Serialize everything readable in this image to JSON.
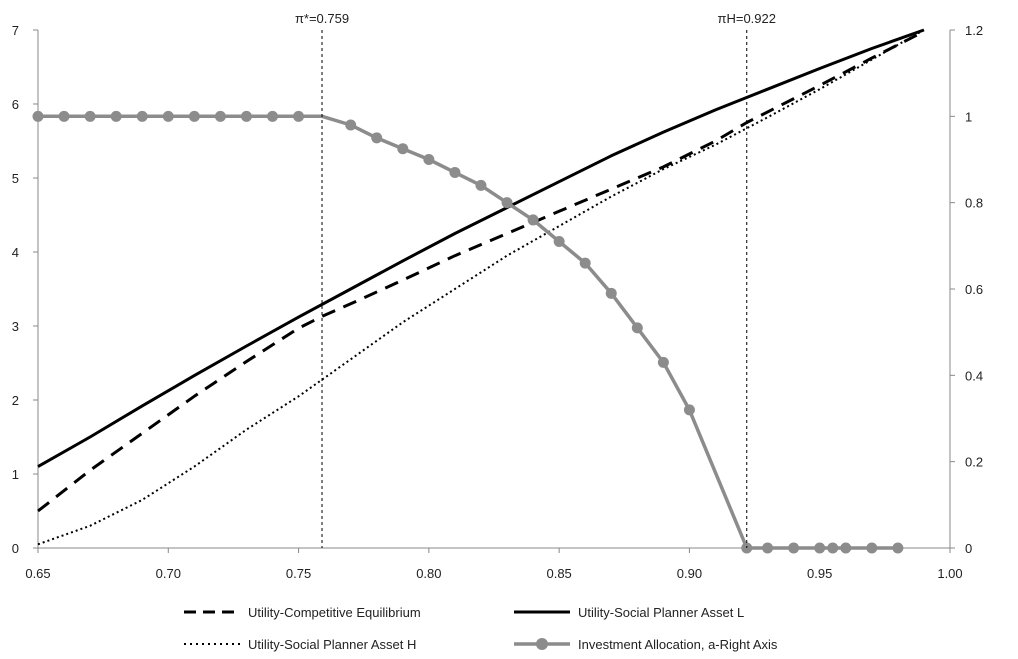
{
  "chart_data": {
    "type": "line",
    "title": "",
    "xlabel": "",
    "ylabel": "",
    "xlim": [
      0.65,
      1.0
    ],
    "ylim_left": [
      0,
      7
    ],
    "ylim_right": [
      0,
      1.2
    ],
    "grid": false,
    "legend_position": "bottom",
    "x_ticks": [
      "0.65",
      "0.70",
      "0.75",
      "0.80",
      "0.85",
      "0.90",
      "0.95",
      "1.00"
    ],
    "y_left_ticks": [
      "0",
      "1",
      "2",
      "3",
      "4",
      "5",
      "6",
      "7"
    ],
    "y_right_ticks": [
      "0",
      "0.2",
      "0.4",
      "0.6",
      "0.8",
      "1",
      "1.2"
    ],
    "annotations": [
      {
        "label": "π*=0.759",
        "x": 0.759
      },
      {
        "label": "πH=0.922",
        "x": 0.922
      }
    ],
    "series": [
      {
        "name": "Utility-Competitive  Equilibrium",
        "axis": "left",
        "style": "dashed",
        "color": "#000000",
        "x": [
          0.65,
          0.67,
          0.69,
          0.71,
          0.73,
          0.75,
          0.759,
          0.77,
          0.79,
          0.81,
          0.83,
          0.85,
          0.87,
          0.89,
          0.91,
          0.922,
          0.95,
          0.97,
          0.99
        ],
        "values": [
          0.5,
          1.05,
          1.55,
          2.05,
          2.52,
          2.97,
          3.13,
          3.3,
          3.62,
          3.95,
          4.25,
          4.55,
          4.85,
          5.15,
          5.5,
          5.75,
          6.25,
          6.62,
          6.98
        ]
      },
      {
        "name": "Utility-Social Planner Asset L",
        "axis": "left",
        "style": "solid",
        "color": "#000000",
        "x": [
          0.65,
          0.67,
          0.69,
          0.71,
          0.73,
          0.75,
          0.77,
          0.79,
          0.81,
          0.83,
          0.85,
          0.87,
          0.89,
          0.91,
          0.93,
          0.95,
          0.97,
          0.99
        ],
        "values": [
          1.1,
          1.5,
          1.92,
          2.33,
          2.73,
          3.12,
          3.5,
          3.88,
          4.25,
          4.6,
          4.95,
          5.3,
          5.62,
          5.92,
          6.2,
          6.48,
          6.75,
          7.0
        ]
      },
      {
        "name": "Utility-Social Planner Asset H",
        "axis": "left",
        "style": "dotted",
        "color": "#000000",
        "x": [
          0.65,
          0.67,
          0.69,
          0.71,
          0.73,
          0.75,
          0.77,
          0.79,
          0.81,
          0.83,
          0.85,
          0.87,
          0.89,
          0.91,
          0.93,
          0.95,
          0.97,
          0.99
        ],
        "values": [
          0.05,
          0.3,
          0.65,
          1.1,
          1.6,
          2.05,
          2.55,
          3.05,
          3.5,
          3.95,
          4.35,
          4.75,
          5.12,
          5.45,
          5.82,
          6.2,
          6.6,
          7.0
        ]
      },
      {
        "name": "Investment Allocation, a-Right Axis",
        "axis": "right",
        "style": "solid-markers",
        "color": "#8c8c8c",
        "x": [
          0.65,
          0.66,
          0.67,
          0.68,
          0.69,
          0.7,
          0.71,
          0.72,
          0.73,
          0.74,
          0.75,
          0.759,
          0.77,
          0.78,
          0.79,
          0.8,
          0.81,
          0.82,
          0.83,
          0.84,
          0.85,
          0.86,
          0.87,
          0.88,
          0.89,
          0.9,
          0.922,
          0.93,
          0.94,
          0.95,
          0.955,
          0.96,
          0.97,
          0.98
        ],
        "values": [
          1.0,
          1.0,
          1.0,
          1.0,
          1.0,
          1.0,
          1.0,
          1.0,
          1.0,
          1.0,
          1.0,
          1.0,
          0.98,
          0.95,
          0.925,
          0.9,
          0.87,
          0.84,
          0.8,
          0.76,
          0.71,
          0.66,
          0.59,
          0.51,
          0.43,
          0.32,
          0.0,
          0.0,
          0.0,
          0.0,
          0.0,
          0.0,
          0.0,
          0.0
        ]
      }
    ]
  }
}
